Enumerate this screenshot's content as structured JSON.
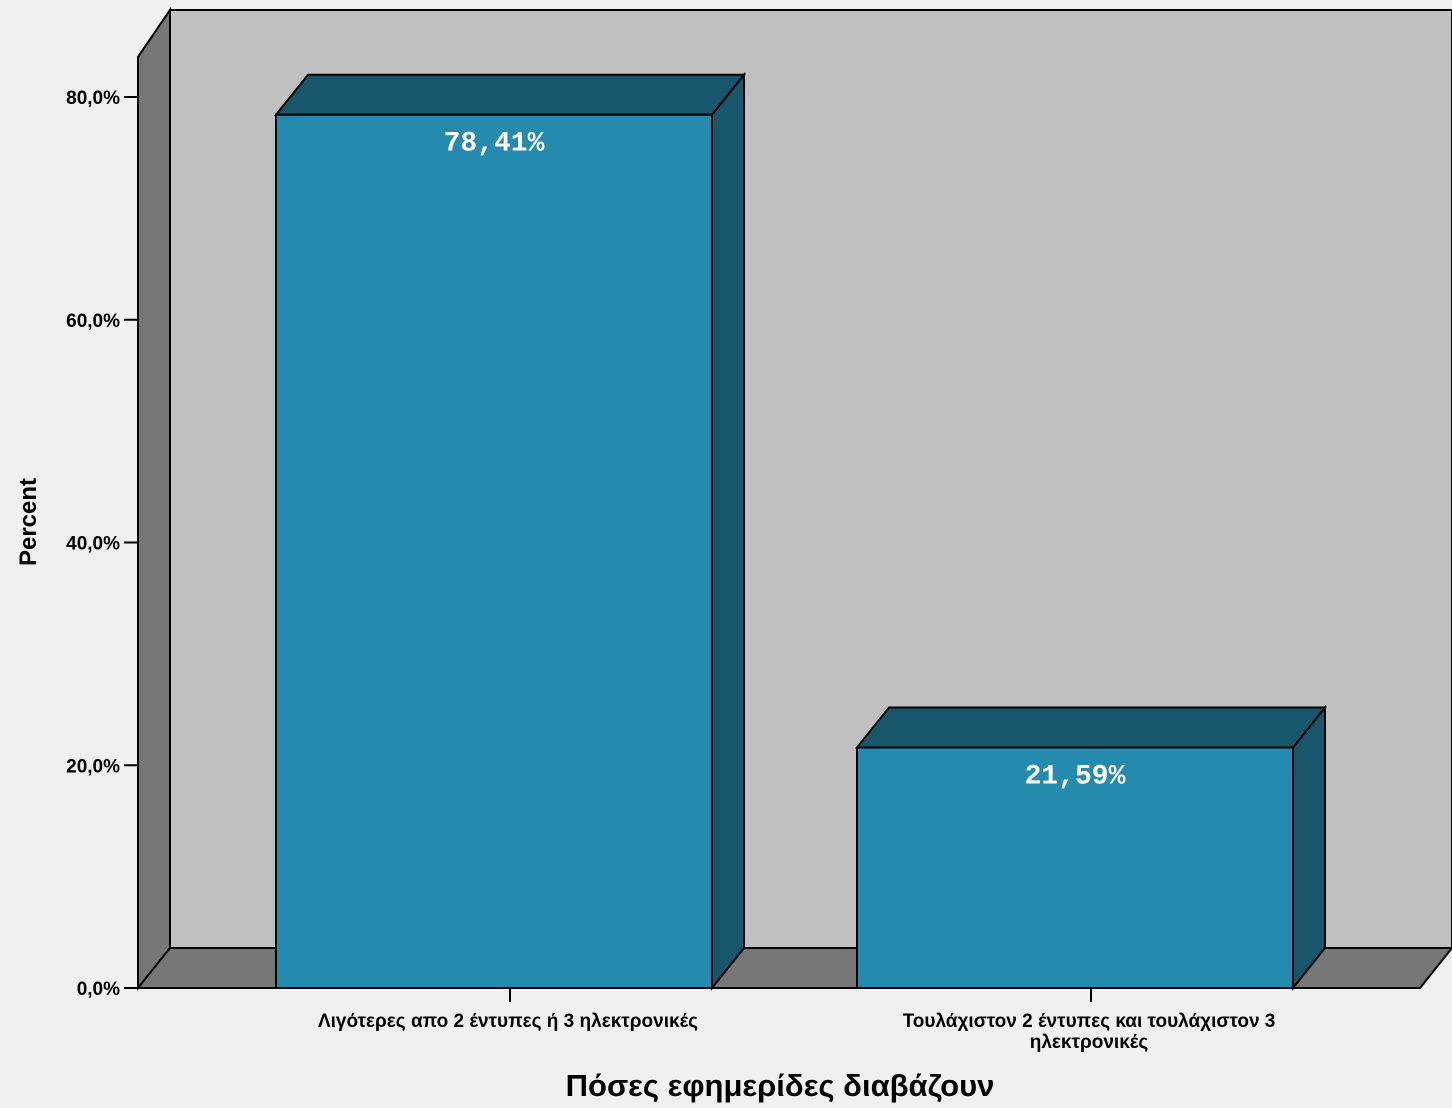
{
  "chart_data": {
    "type": "bar",
    "style": "3d",
    "categories": [
      "Λιγότερες απο 2 έντυπες ή 3 ηλεκτρονικές",
      "Τουλάχιστον 2 έντυπες και τουλάχιστον 3 ηλεκτρονικές"
    ],
    "category_lines": [
      [
        "Λιγότερες απο 2 έντυπες ή 3 ηλεκτρονικές"
      ],
      [
        "Τουλάχιστον 2 έντυπες και τουλάχιστον 3",
        "ηλεκτρονικές"
      ]
    ],
    "values": [
      78.41,
      21.59
    ],
    "data_labels": [
      "78,41%",
      "21,59%"
    ],
    "xlabel": "Πόσες εφημερίδες διαβάζουν",
    "ylabel": "Percent",
    "ylim": [
      0,
      80
    ],
    "yticks": [
      0,
      20,
      40,
      60,
      80
    ],
    "ytick_labels": [
      "0,0%",
      "20,0%",
      "40,0%",
      "60,0%",
      "80,0%"
    ],
    "grid": false,
    "legend": "none"
  },
  "colors": {
    "bar_front": "#258bae",
    "bar_top": "#17566b",
    "bar_side": "#17566b",
    "back_wall": "#c0c0c0",
    "side_wall": "#777777",
    "floor": "#777777",
    "background": "#f0f0f0"
  }
}
